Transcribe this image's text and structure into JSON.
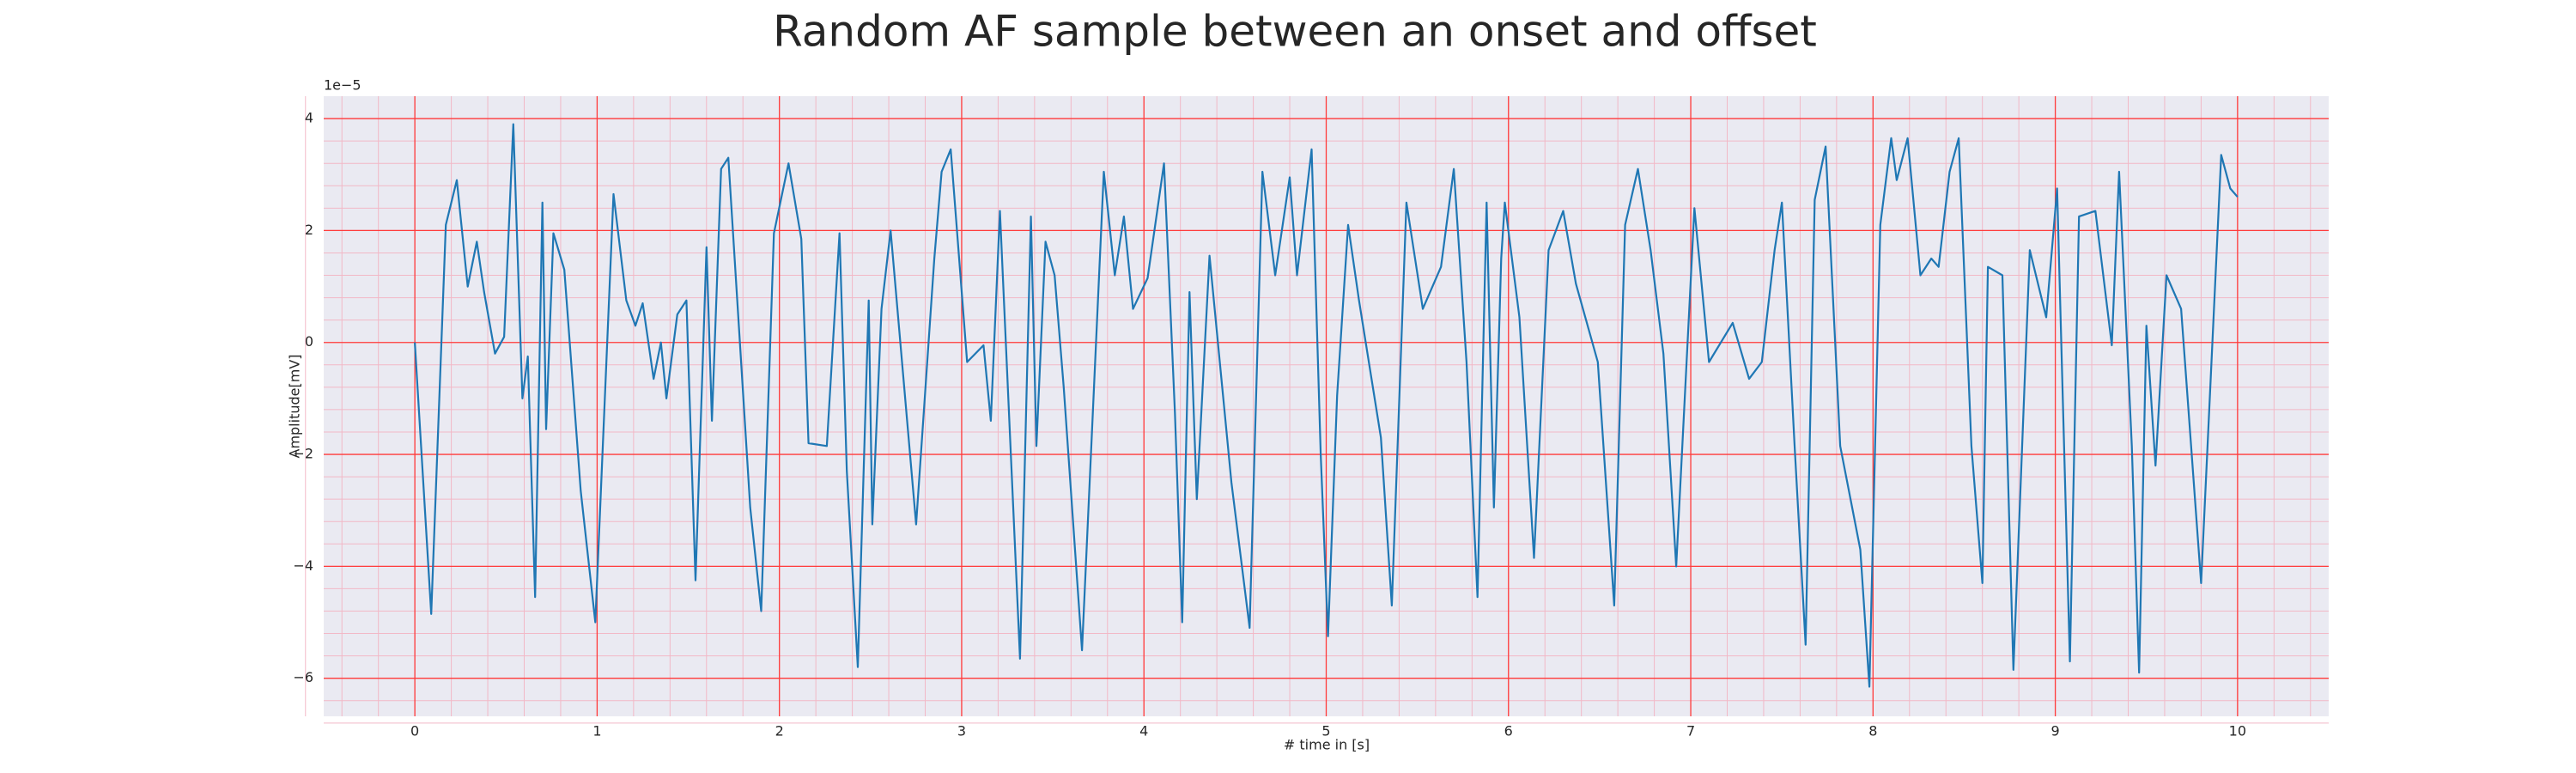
{
  "chart_data": {
    "type": "line",
    "title": "Random AF sample between an onset and offset",
    "xlabel": "# time in [s]",
    "ylabel": "Amplitude[mV]",
    "y_offset_label": "1e−5",
    "xlim": [
      -0.5,
      10.5
    ],
    "ylim": [
      -6.68,
      4.4
    ],
    "xticks": [
      0,
      1,
      2,
      3,
      4,
      5,
      6,
      7,
      8,
      9,
      10
    ],
    "yticks": [
      {
        "value": -6,
        "label": "−6"
      },
      {
        "value": -4,
        "label": "−4"
      },
      {
        "value": -2,
        "label": "−2"
      },
      0,
      2,
      4
    ],
    "grid": true,
    "minor_grid": true,
    "grid_color": "#ff3b3b",
    "minor_grid_color": "#f2b8c6",
    "background": "#eaeaf2",
    "series": [
      {
        "color": "#1f77b4",
        "x": [
          0,
          0.09,
          0.17,
          0.23,
          0.29,
          0.34,
          0.38,
          0.44,
          0.49,
          0.54,
          0.59,
          0.62,
          0.66,
          0.7,
          0.72,
          0.76,
          0.82,
          0.91,
          0.99,
          1.09,
          1.16,
          1.21,
          1.25,
          1.31,
          1.35,
          1.38,
          1.44,
          1.49,
          1.54,
          1.6,
          1.63,
          1.68,
          1.72,
          1.79,
          1.84,
          1.9,
          1.97,
          2.05,
          2.12,
          2.16,
          2.26,
          2.33,
          2.37,
          2.43,
          2.49,
          2.51,
          2.56,
          2.61,
          2.75,
          2.85,
          2.89,
          2.94,
          3.03,
          3.12,
          3.16,
          3.21,
          3.32,
          3.38,
          3.41,
          3.46,
          3.51,
          3.56,
          3.66,
          3.78,
          3.84,
          3.89,
          3.94,
          4.02,
          4.11,
          4.17,
          4.21,
          4.25,
          4.29,
          4.36,
          4.48,
          4.58,
          4.65,
          4.72,
          4.8,
          4.84,
          4.92,
          4.97,
          5.01,
          5.06,
          5.12,
          5.18,
          5.3,
          5.36,
          5.44,
          5.53,
          5.63,
          5.7,
          5.77,
          5.83,
          5.88,
          5.92,
          5.96,
          5.98,
          6.06,
          6.14,
          6.22,
          6.3,
          6.37,
          6.49,
          6.58,
          6.64,
          6.71,
          6.78,
          6.85,
          6.92,
          7.02,
          7.1,
          7.23,
          7.32,
          7.39,
          7.46,
          7.5,
          7.57,
          7.63,
          7.68,
          7.74,
          7.82,
          7.93,
          7.98,
          8.04,
          8.1,
          8.13,
          8.19,
          8.26,
          8.32,
          8.36,
          8.42,
          8.47,
          8.54,
          8.6,
          8.63,
          8.71,
          8.77,
          8.86,
          8.95,
          9.01,
          9.08,
          9.13,
          9.22,
          9.31,
          9.35,
          9.42,
          9.46,
          9.5,
          9.55,
          9.61,
          9.69,
          9.8,
          9.91,
          9.96,
          10.0
        ],
        "values": [
          0,
          -4.85,
          2.1,
          2.9,
          1.0,
          1.8,
          0.9,
          -0.2,
          0.1,
          3.9,
          -1.0,
          -0.25,
          -4.55,
          2.5,
          -1.55,
          1.95,
          1.3,
          -2.65,
          -5.0,
          2.65,
          0.75,
          0.3,
          0.7,
          -0.65,
          0,
          -1.0,
          0.5,
          0.75,
          -4.25,
          1.7,
          -1.4,
          3.1,
          3.3,
          -0.35,
          -2.95,
          -4.8,
          1.95,
          3.2,
          1.85,
          -1.8,
          -1.85,
          1.95,
          -2.3,
          -5.8,
          0.75,
          -3.25,
          0.6,
          2.0,
          -3.25,
          1.5,
          3.05,
          3.45,
          -0.35,
          -0.05,
          -1.4,
          2.35,
          -5.65,
          2.25,
          -1.85,
          1.8,
          1.2,
          -0.8,
          -5.5,
          3.05,
          1.2,
          2.25,
          0.6,
          1.15,
          3.2,
          -1.25,
          -5.0,
          0.9,
          -2.8,
          1.55,
          -2.5,
          -5.1,
          3.05,
          1.2,
          2.95,
          1.2,
          3.45,
          -2.0,
          -5.25,
          -0.95,
          2.1,
          0.75,
          -1.7,
          -4.7,
          2.5,
          0.6,
          1.35,
          3.1,
          -0.35,
          -4.55,
          2.5,
          -2.95,
          1.5,
          2.5,
          0.45,
          -3.85,
          1.65,
          2.35,
          1.05,
          -0.35,
          -4.7,
          2.1,
          3.1,
          1.65,
          -0.2,
          -4.0,
          2.4,
          -0.35,
          0.35,
          -0.65,
          -0.35,
          1.65,
          2.5,
          -1.85,
          -5.4,
          2.55,
          3.5,
          -1.85,
          -3.7,
          -6.15,
          2.1,
          3.65,
          2.9,
          3.65,
          1.2,
          1.5,
          1.35,
          3.05,
          3.65,
          -1.85,
          -4.3,
          1.35,
          1.2,
          -5.85,
          1.65,
          0.45,
          2.75,
          -5.7,
          2.25,
          2.35,
          -0.05,
          3.05,
          -1.85,
          -5.9,
          0.3,
          -2.2,
          1.2,
          0.6,
          -4.3,
          3.35,
          2.75,
          2.6
        ]
      }
    ]
  }
}
